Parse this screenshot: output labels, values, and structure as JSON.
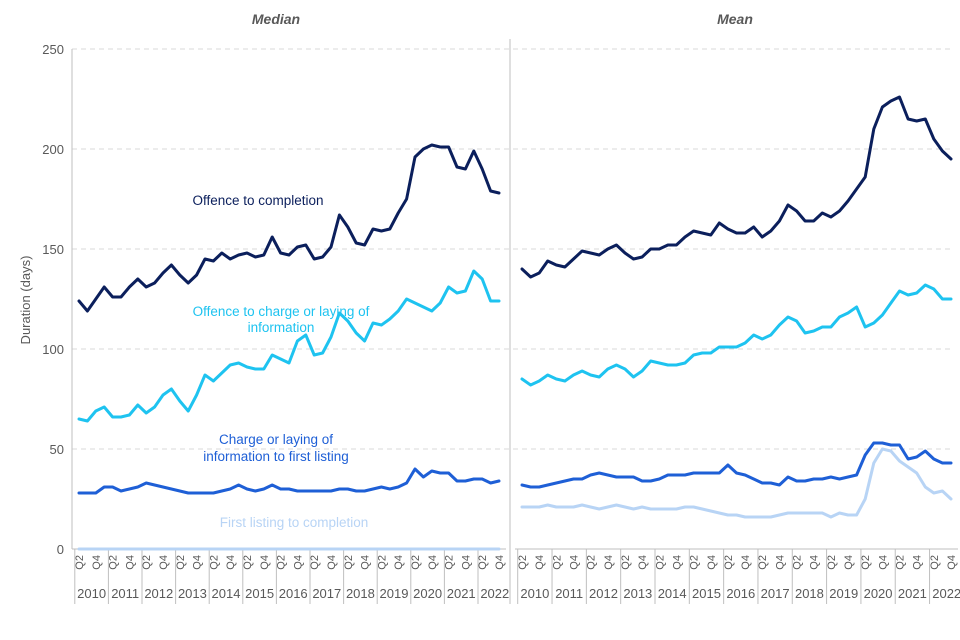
{
  "chart_data": {
    "type": "line",
    "ylabel": "Duration (days)",
    "ylim": [
      0,
      250
    ],
    "yticks": [
      0,
      50,
      100,
      150,
      200,
      250
    ],
    "grid": true,
    "quarter_labels": [
      "Q2",
      "Q4",
      "Q2",
      "Q4",
      "Q2",
      "Q4",
      "Q2",
      "Q4",
      "Q2",
      "Q4",
      "Q2",
      "Q4",
      "Q2",
      "Q4",
      "Q2",
      "Q4",
      "Q2",
      "Q4",
      "Q2",
      "Q4",
      "Q2",
      "Q4",
      "Q2",
      "Q4",
      "Q2",
      "Q4",
      "Q2",
      "Q4"
    ],
    "years": [
      "2010",
      "2011",
      "2012",
      "2013",
      "2014",
      "2015",
      "2016",
      "2017",
      "2018",
      "2019",
      "2020",
      "2021",
      "2022"
    ],
    "panels": [
      {
        "title": "Median",
        "series": [
          {
            "name": "Offence to completion",
            "color": "#0b1f5c",
            "values": [
              124,
              119,
              125,
              131,
              126,
              126,
              131,
              135,
              131,
              133,
              138,
              142,
              137,
              133,
              137,
              145,
              144,
              148,
              145,
              147,
              148,
              146,
              147,
              156,
              148,
              147,
              151,
              152,
              145,
              146,
              151,
              167,
              161,
              153,
              152,
              160,
              159,
              160,
              168,
              175,
              196,
              200,
              202,
              201,
              201,
              191,
              190,
              199,
              190,
              179,
              178
            ]
          },
          {
            "name": "Offence to charge or laying of information",
            "color": "#1ec3f0",
            "values": [
              65,
              64,
              69,
              71,
              66,
              66,
              67,
              72,
              68,
              71,
              77,
              80,
              74,
              69,
              77,
              87,
              84,
              88,
              92,
              93,
              91,
              90,
              90,
              97,
              95,
              93,
              104,
              107,
              97,
              98,
              106,
              118,
              114,
              108,
              104,
              113,
              112,
              115,
              119,
              125,
              123,
              121,
              119,
              123,
              131,
              128,
              129,
              139,
              135,
              124,
              124
            ]
          },
          {
            "name": "Charge or laying of information to first listing",
            "color": "#1e5fd6",
            "values": [
              28,
              28,
              28,
              31,
              31,
              29,
              30,
              31,
              33,
              32,
              31,
              30,
              29,
              28,
              28,
              28,
              28,
              29,
              30,
              32,
              30,
              29,
              30,
              32,
              30,
              30,
              29,
              29,
              29,
              29,
              29,
              30,
              30,
              29,
              29,
              30,
              31,
              30,
              31,
              33,
              40,
              36,
              39,
              38,
              38,
              34,
              34,
              35,
              35,
              33,
              34
            ]
          },
          {
            "name": "First listing to completion",
            "color": "#b8d4f5",
            "values": [
              0,
              0,
              0,
              0,
              0,
              0,
              0,
              0,
              0,
              0,
              0,
              0,
              0,
              0,
              0,
              0,
              0,
              0,
              0,
              0,
              0,
              0,
              0,
              0,
              0,
              0,
              0,
              0,
              0,
              0,
              0,
              0,
              0,
              0,
              0,
              0,
              0,
              0,
              0,
              0,
              0,
              0,
              0,
              0,
              0,
              0,
              0,
              0,
              0,
              0,
              0
            ]
          }
        ]
      },
      {
        "title": "Mean",
        "series": [
          {
            "name": "Offence to completion",
            "color": "#0b1f5c",
            "values": [
              140,
              136,
              138,
              144,
              142,
              141,
              145,
              149,
              148,
              147,
              150,
              152,
              148,
              145,
              146,
              150,
              150,
              152,
              152,
              156,
              159,
              158,
              157,
              163,
              160,
              158,
              158,
              161,
              156,
              159,
              164,
              172,
              169,
              164,
              164,
              168,
              166,
              169,
              174,
              180,
              186,
              210,
              221,
              224,
              226,
              215,
              214,
              215,
              205,
              199,
              195
            ]
          },
          {
            "name": "Offence to charge or laying of information",
            "color": "#1ec3f0",
            "values": [
              85,
              82,
              84,
              87,
              85,
              84,
              87,
              89,
              87,
              86,
              90,
              92,
              90,
              86,
              89,
              94,
              93,
              92,
              92,
              93,
              97,
              98,
              98,
              101,
              101,
              101,
              103,
              107,
              105,
              107,
              112,
              116,
              114,
              108,
              109,
              111,
              111,
              116,
              118,
              121,
              111,
              113,
              117,
              123,
              129,
              127,
              128,
              132,
              130,
              125,
              125
            ]
          },
          {
            "name": "Charge or laying of information to first listing",
            "color": "#1e5fd6",
            "values": [
              32,
              31,
              31,
              32,
              33,
              34,
              35,
              35,
              37,
              38,
              37,
              36,
              36,
              36,
              34,
              34,
              35,
              37,
              37,
              37,
              38,
              38,
              38,
              38,
              42,
              38,
              37,
              35,
              33,
              33,
              32,
              36,
              34,
              34,
              35,
              35,
              36,
              35,
              36,
              37,
              47,
              53,
              53,
              52,
              52,
              45,
              46,
              49,
              45,
              43,
              43
            ]
          },
          {
            "name": "First listing to completion",
            "color": "#b8d4f5",
            "values": [
              21,
              21,
              21,
              22,
              21,
              21,
              21,
              22,
              21,
              20,
              21,
              22,
              21,
              20,
              21,
              20,
              20,
              20,
              20,
              21,
              21,
              20,
              19,
              18,
              17,
              17,
              16,
              16,
              16,
              16,
              17,
              18,
              18,
              18,
              18,
              18,
              16,
              18,
              17,
              17,
              25,
              43,
              50,
              49,
              44,
              41,
              38,
              31,
              28,
              29,
              25
            ]
          }
        ]
      }
    ],
    "annotations": [
      {
        "lines": [
          "Offence to completion"
        ],
        "color": "#0b1f5c"
      },
      {
        "lines": [
          "Offence to charge or laying of",
          "information"
        ],
        "color": "#1ec3f0"
      },
      {
        "lines": [
          "Charge or laying of",
          "information to first listing"
        ],
        "color": "#1e5fd6"
      },
      {
        "lines": [
          "First listing to completion"
        ],
        "color": "#b8d4f5"
      }
    ]
  }
}
